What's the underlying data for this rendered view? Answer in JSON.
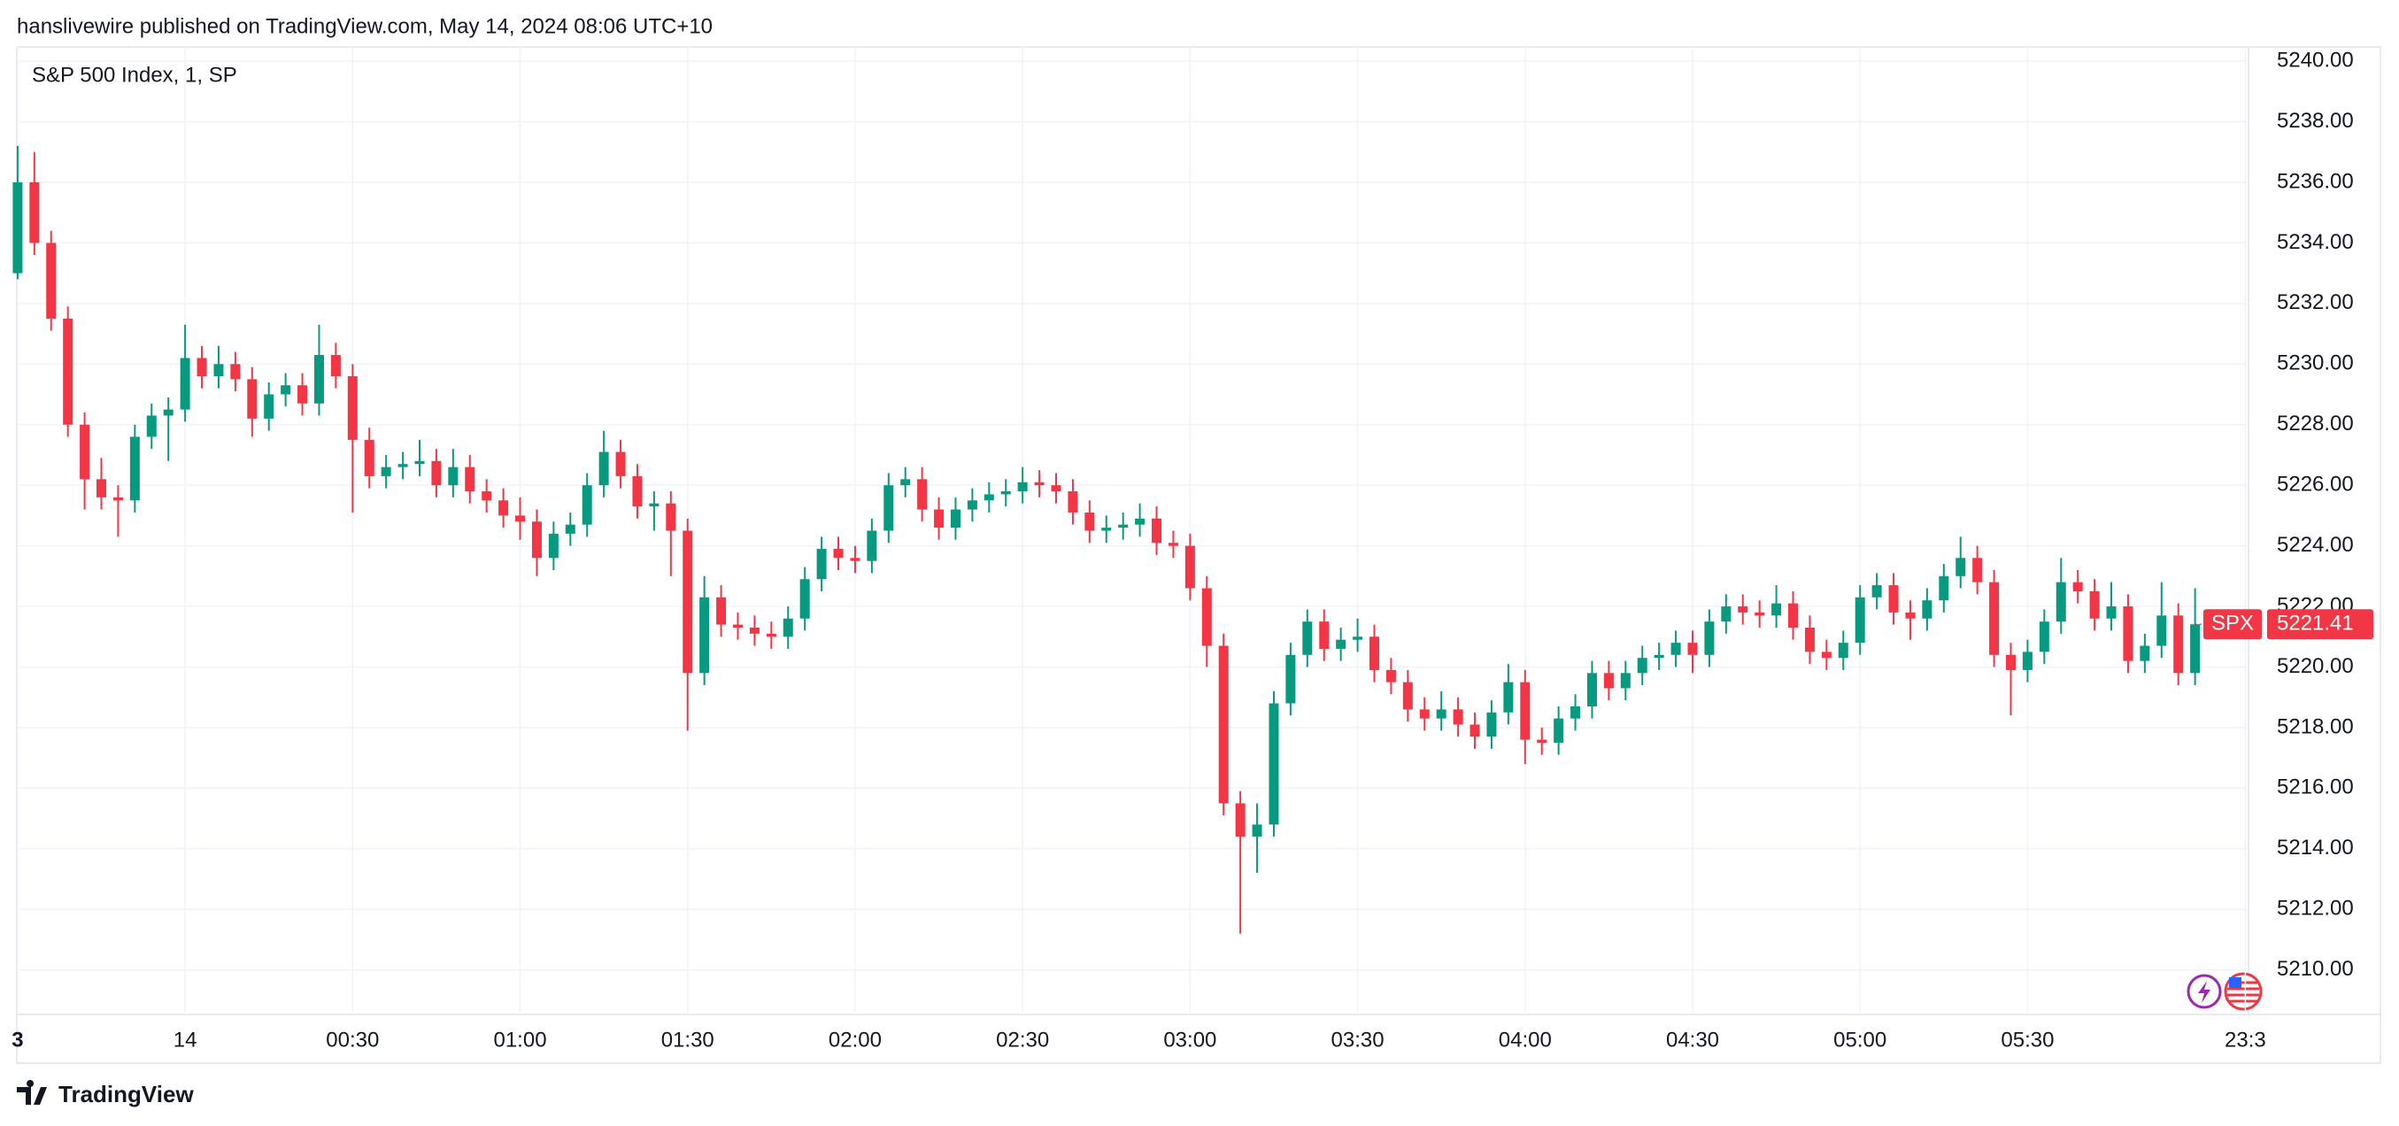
{
  "header": "hanslivewire published on TradingView.com, May 14, 2024 08:06 UTC+10",
  "footer": "TradingView",
  "chart_data": {
    "type": "candlestick",
    "title": "S&P 500 Index, 1, SP",
    "symbol": "SPX",
    "last_price": 5221.41,
    "up_color": "#089981",
    "down_color": "#f23645",
    "grid": true,
    "ylim": [
      5208.5,
      5240.5
    ],
    "yticks": [
      {
        "value": 5210,
        "label": "5210.00"
      },
      {
        "value": 5212,
        "label": "5212.00"
      },
      {
        "value": 5214,
        "label": "5214.00"
      },
      {
        "value": 5216,
        "label": "5216.00"
      },
      {
        "value": 5218,
        "label": "5218.00"
      },
      {
        "value": 5220,
        "label": "5220.00"
      },
      {
        "value": 5222,
        "label": "5222.00"
      },
      {
        "value": 5224,
        "label": "5224.00"
      },
      {
        "value": 5226,
        "label": "5226.00"
      },
      {
        "value": 5228,
        "label": "5228.00"
      },
      {
        "value": 5230,
        "label": "5230.00"
      },
      {
        "value": 5232,
        "label": "5232.00"
      },
      {
        "value": 5234,
        "label": "5234.00"
      },
      {
        "value": 5236,
        "label": "5236.00"
      },
      {
        "value": 5238,
        "label": "5238.00"
      },
      {
        "value": 5240,
        "label": "5240.00"
      }
    ],
    "xticks": [
      {
        "value": "23:30",
        "label": "3"
      },
      {
        "value": "00:00",
        "label": "14"
      },
      {
        "value": "00:30",
        "label": "00:30"
      },
      {
        "value": "01:00",
        "label": "01:00"
      },
      {
        "value": "01:30",
        "label": "01:30"
      },
      {
        "value": "02:00",
        "label": "02:00"
      },
      {
        "value": "02:30",
        "label": "02:30"
      },
      {
        "value": "03:00",
        "label": "03:00"
      },
      {
        "value": "03:30",
        "label": "03:30"
      },
      {
        "value": "04:00",
        "label": "04:00"
      },
      {
        "value": "04:30",
        "label": "04:30"
      },
      {
        "value": "05:00",
        "label": "05:00"
      },
      {
        "value": "05:30",
        "label": "05:30"
      },
      {
        "value": "06:09",
        "label": "23:3"
      }
    ],
    "x": [
      "23:30",
      "23:33",
      "23:36",
      "23:39",
      "23:42",
      "23:45",
      "23:48",
      "23:51",
      "23:54",
      "23:57",
      "00:00",
      "00:03",
      "00:06",
      "00:09",
      "00:12",
      "00:15",
      "00:18",
      "00:21",
      "00:24",
      "00:27",
      "00:30",
      "00:33",
      "00:36",
      "00:39",
      "00:42",
      "00:45",
      "00:48",
      "00:51",
      "00:54",
      "00:57",
      "01:00",
      "01:03",
      "01:06",
      "01:09",
      "01:12",
      "01:15",
      "01:18",
      "01:21",
      "01:24",
      "01:27",
      "01:30",
      "01:33",
      "01:36",
      "01:39",
      "01:42",
      "01:45",
      "01:48",
      "01:51",
      "01:54",
      "01:57",
      "02:00",
      "02:03",
      "02:06",
      "02:09",
      "02:12",
      "02:15",
      "02:18",
      "02:21",
      "02:24",
      "02:27",
      "02:30",
      "02:33",
      "02:36",
      "02:39",
      "02:42",
      "02:45",
      "02:48",
      "02:51",
      "02:54",
      "02:57",
      "03:00",
      "03:03",
      "03:06",
      "03:09",
      "03:12",
      "03:15",
      "03:18",
      "03:21",
      "03:24",
      "03:27",
      "03:30",
      "03:33",
      "03:36",
      "03:39",
      "03:42",
      "03:45",
      "03:48",
      "03:51",
      "03:54",
      "03:57",
      "04:00",
      "04:03",
      "04:06",
      "04:09",
      "04:12",
      "04:15",
      "04:18",
      "04:21",
      "04:24",
      "04:27",
      "04:30",
      "04:33",
      "04:36",
      "04:39",
      "04:42",
      "04:45",
      "04:48",
      "04:51",
      "04:54",
      "04:57",
      "05:00",
      "05:03",
      "05:06",
      "05:09",
      "05:12",
      "05:15",
      "05:18",
      "05:21",
      "05:24",
      "05:27",
      "05:30",
      "05:33",
      "05:36",
      "05:39",
      "05:42",
      "05:45",
      "05:48",
      "05:51",
      "05:54",
      "05:57",
      "06:00"
    ],
    "open": [
      5233,
      5236,
      5234,
      5231.5,
      5228,
      5226.2,
      5225.6,
      5225.5,
      5227.6,
      5228.3,
      5228.5,
      5230.2,
      5229.6,
      5230,
      5229.5,
      5228.2,
      5229,
      5229.3,
      5228.7,
      5230.3,
      5229.6,
      5227.5,
      5226.3,
      5226.6,
      5226.7,
      5226.8,
      5226,
      5226.6,
      5225.8,
      5225.5,
      5225,
      5224.8,
      5223.6,
      5224.4,
      5224.7,
      5226,
      5227.1,
      5226.3,
      5225.3,
      5225.4,
      5224.5,
      5219.8,
      5222.3,
      5221.4,
      5221.3,
      5221.1,
      5221,
      5221.6,
      5222.9,
      5223.9,
      5223.6,
      5223.5,
      5224.5,
      5226,
      5226.2,
      5225.2,
      5224.6,
      5225.2,
      5225.5,
      5225.7,
      5225.8,
      5226.1,
      5226,
      5225.8,
      5225.1,
      5224.5,
      5224.6,
      5224.7,
      5224.9,
      5224.1,
      5224,
      5222.6,
      5220.7,
      5215.5,
      5214.4,
      5214.8,
      5218.8,
      5220.4,
      5221.5,
      5220.6,
      5220.9,
      5221,
      5219.9,
      5219.5,
      5218.6,
      5218.3,
      5218.6,
      5218.1,
      5217.7,
      5218.5,
      5219.5,
      5217.6,
      5217.5,
      5218.3,
      5218.7,
      5219.8,
      5219.3,
      5219.8,
      5220.3,
      5220.4,
      5220.8,
      5220.4,
      5221.5,
      5222,
      5221.8,
      5221.7,
      5222.1,
      5221.3,
      5220.5,
      5220.3,
      5220.8,
      5222.3,
      5222.7,
      5221.8,
      5221.6,
      5222.2,
      5223,
      5223.6,
      5222.8,
      5220.4,
      5219.9,
      5220.5,
      5221.5,
      5222.8,
      5222.5,
      5221.6,
      5222,
      5220.2,
      5220.7,
      5221.7,
      5219.8
    ],
    "high": [
      5237.2,
      5237,
      5234.4,
      5231.9,
      5228.4,
      5226.9,
      5226,
      5228,
      5228.7,
      5228.9,
      5231.3,
      5230.6,
      5230.6,
      5230.4,
      5229.9,
      5229.4,
      5229.7,
      5229.7,
      5231.3,
      5230.7,
      5230,
      5227.9,
      5227,
      5227.1,
      5227.5,
      5227.2,
      5227.2,
      5227,
      5226.2,
      5225.9,
      5225.6,
      5225.2,
      5224.8,
      5225.1,
      5226.4,
      5227.8,
      5227.5,
      5226.7,
      5225.8,
      5225.8,
      5224.9,
      5223,
      5222.7,
      5221.8,
      5221.7,
      5221.5,
      5222,
      5223.3,
      5224.3,
      5224.3,
      5224,
      5224.9,
      5226.4,
      5226.6,
      5226.6,
      5225.6,
      5225.6,
      5225.9,
      5226.1,
      5226.2,
      5226.6,
      5226.5,
      5226.4,
      5226.2,
      5225.5,
      5225,
      5225.1,
      5225.4,
      5225.3,
      5224.5,
      5224.4,
      5223,
      5221.1,
      5215.9,
      5215.5,
      5219.2,
      5220.8,
      5221.9,
      5221.9,
      5221.3,
      5221.6,
      5221.4,
      5220.3,
      5219.9,
      5219,
      5219.2,
      5219,
      5218.5,
      5218.9,
      5220.1,
      5219.9,
      5218,
      5218.7,
      5219.1,
      5220.2,
      5220.2,
      5220.2,
      5220.7,
      5220.8,
      5221.2,
      5221.2,
      5221.9,
      5222.4,
      5222.4,
      5222.2,
      5222.7,
      5222.5,
      5221.7,
      5220.9,
      5221.2,
      5222.7,
      5223.1,
      5223.1,
      5222.2,
      5222.6,
      5223.4,
      5224.3,
      5224,
      5223.2,
      5220.8,
      5220.9,
      5221.9,
      5223.6,
      5223.2,
      5222.9,
      5222.8,
      5222.4,
      5221.1,
      5222.8,
      5222.1,
      5222.6
    ],
    "low": [
      5232.8,
      5233.6,
      5231.1,
      5227.6,
      5225.2,
      5225.2,
      5224.3,
      5225.1,
      5227.2,
      5226.8,
      5228.1,
      5229.2,
      5229.2,
      5229.1,
      5227.6,
      5227.8,
      5228.6,
      5228.3,
      5228.3,
      5229.2,
      5225.1,
      5225.9,
      5225.9,
      5226.2,
      5226.3,
      5225.6,
      5225.6,
      5225.4,
      5225.1,
      5224.6,
      5224.2,
      5223,
      5223.2,
      5224,
      5224.3,
      5225.6,
      5225.9,
      5224.9,
      5224.5,
      5223,
      5217.9,
      5219.4,
      5221,
      5220.9,
      5220.7,
      5220.6,
      5220.6,
      5221.2,
      5222.5,
      5223.2,
      5223.1,
      5223.1,
      5224.1,
      5225.6,
      5224.8,
      5224.2,
      5224.2,
      5224.8,
      5225.1,
      5225.3,
      5225.4,
      5225.6,
      5225.4,
      5224.7,
      5224.1,
      5224.1,
      5224.2,
      5224.3,
      5223.7,
      5223.6,
      5222.2,
      5220,
      5215.1,
      5211.2,
      5213.2,
      5214.4,
      5218.4,
      5220,
      5220.2,
      5220.2,
      5220.5,
      5219.5,
      5219.1,
      5218.2,
      5217.9,
      5217.9,
      5217.7,
      5217.3,
      5217.3,
      5218.1,
      5216.8,
      5217.1,
      5217.1,
      5217.9,
      5218.3,
      5218.9,
      5218.9,
      5219.4,
      5219.9,
      5220,
      5219.8,
      5220,
      5221.1,
      5221.4,
      5221.3,
      5221.3,
      5220.9,
      5220.1,
      5219.9,
      5219.9,
      5220.4,
      5221.9,
      5221.4,
      5220.9,
      5221.2,
      5221.8,
      5222.6,
      5222.4,
      5220,
      5218.4,
      5219.5,
      5220.1,
      5221.1,
      5222.1,
      5221.2,
      5221.2,
      5219.8,
      5219.8,
      5220.3,
      5219.4,
      5219.4
    ],
    "close": [
      5236,
      5234,
      5231.5,
      5228,
      5226.2,
      5225.6,
      5225.5,
      5227.6,
      5228.3,
      5228.5,
      5230.2,
      5229.6,
      5230,
      5229.5,
      5228.2,
      5229,
      5229.3,
      5228.7,
      5230.3,
      5229.6,
      5227.5,
      5226.3,
      5226.6,
      5226.7,
      5226.8,
      5226,
      5226.6,
      5225.8,
      5225.5,
      5225,
      5224.8,
      5223.6,
      5224.4,
      5224.7,
      5226,
      5227.1,
      5226.3,
      5225.3,
      5225.4,
      5224.5,
      5219.8,
      5222.3,
      5221.4,
      5221.3,
      5221.1,
      5221,
      5221.6,
      5222.9,
      5223.9,
      5223.6,
      5223.5,
      5224.5,
      5226,
      5226.2,
      5225.2,
      5224.6,
      5225.2,
      5225.5,
      5225.7,
      5225.8,
      5226.1,
      5226,
      5225.8,
      5225.1,
      5224.5,
      5224.6,
      5224.7,
      5224.9,
      5224.1,
      5224,
      5222.6,
      5220.7,
      5215.5,
      5214.4,
      5214.8,
      5218.8,
      5220.4,
      5221.5,
      5220.6,
      5220.9,
      5221,
      5219.9,
      5219.5,
      5218.6,
      5218.3,
      5218.6,
      5218.1,
      5217.7,
      5218.5,
      5219.5,
      5217.6,
      5217.5,
      5218.3,
      5218.7,
      5219.8,
      5219.3,
      5219.8,
      5220.3,
      5220.4,
      5220.8,
      5220.4,
      5221.5,
      5222,
      5221.8,
      5221.7,
      5222.1,
      5221.3,
      5220.5,
      5220.3,
      5220.8,
      5222.3,
      5222.7,
      5221.8,
      5221.6,
      5222.2,
      5223,
      5223.6,
      5222.8,
      5220.4,
      5219.9,
      5220.5,
      5221.5,
      5222.8,
      5222.5,
      5221.6,
      5222,
      5220.2,
      5220.7,
      5221.7,
      5219.8,
      5221.41
    ]
  }
}
